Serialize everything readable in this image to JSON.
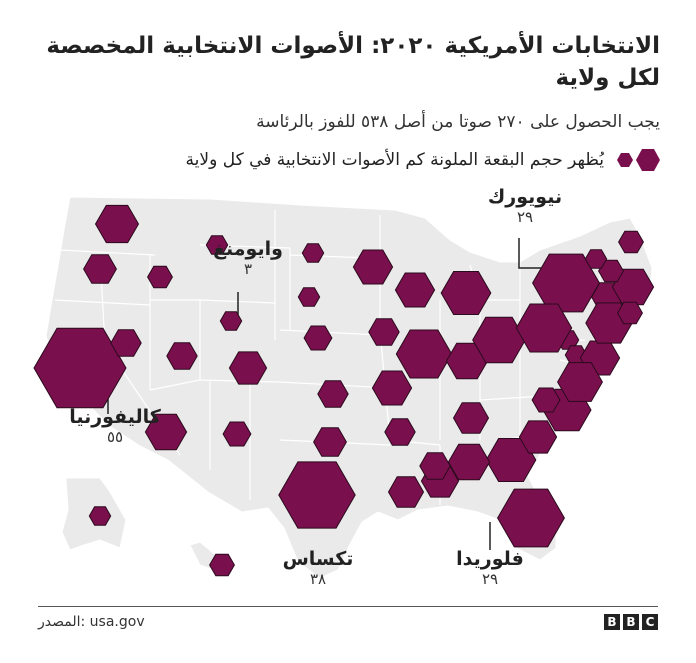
{
  "title": "الانتخابات الأمريكية ٢٠٢٠: الأصوات الانتخابية المخصصة لكل ولاية",
  "subtitle": "يجب الحصول على ٢٧٠ صوتا من أصل ٥٣٨ للفوز بالرئاسة",
  "legend": {
    "text": "يُظهر حجم البقعة الملونة كم الأصوات الانتخابية في كل ولاية",
    "icon": "hexagon-size-icon"
  },
  "colors": {
    "hex": "#7a0f4e",
    "land": "#eaeaea",
    "border": "#ffffff"
  },
  "callouts": {
    "new_york": {
      "name": "نيويورك",
      "votes": "٢٩"
    },
    "wyoming": {
      "name": "وايومنغ",
      "votes": "٣"
    },
    "california": {
      "name": "كاليفورنيا",
      "votes": "٥٥"
    },
    "texas": {
      "name": "تكساس",
      "votes": "٣٨"
    },
    "florida": {
      "name": "فلوريدا",
      "votes": "٢٩"
    }
  },
  "electoral_votes": {
    "AL": 9,
    "AK": 3,
    "AZ": 11,
    "AR": 6,
    "CA": 55,
    "CO": 9,
    "CT": 7,
    "DE": 3,
    "DC": 3,
    "FL": 29,
    "GA": 16,
    "HI": 4,
    "ID": 4,
    "IL": 20,
    "IN": 11,
    "IA": 6,
    "KS": 6,
    "KY": 8,
    "LA": 8,
    "ME": 4,
    "MD": 10,
    "MA": 11,
    "MI": 16,
    "MN": 10,
    "MS": 6,
    "MO": 10,
    "MT": 3,
    "NE": 5,
    "NV": 6,
    "NH": 4,
    "NJ": 14,
    "NM": 5,
    "NY": 29,
    "NC": 15,
    "ND": 3,
    "OH": 18,
    "OK": 7,
    "OR": 7,
    "PA": 20,
    "RI": 4,
    "SC": 9,
    "SD": 3,
    "TN": 11,
    "TX": 38,
    "UT": 6,
    "VT": 3,
    "VA": 13,
    "WA": 12,
    "WV": 5,
    "WI": 10,
    "WY": 3
  },
  "footer": {
    "source": "المصدر: usa.gov",
    "logo": [
      "B",
      "B",
      "C"
    ]
  }
}
